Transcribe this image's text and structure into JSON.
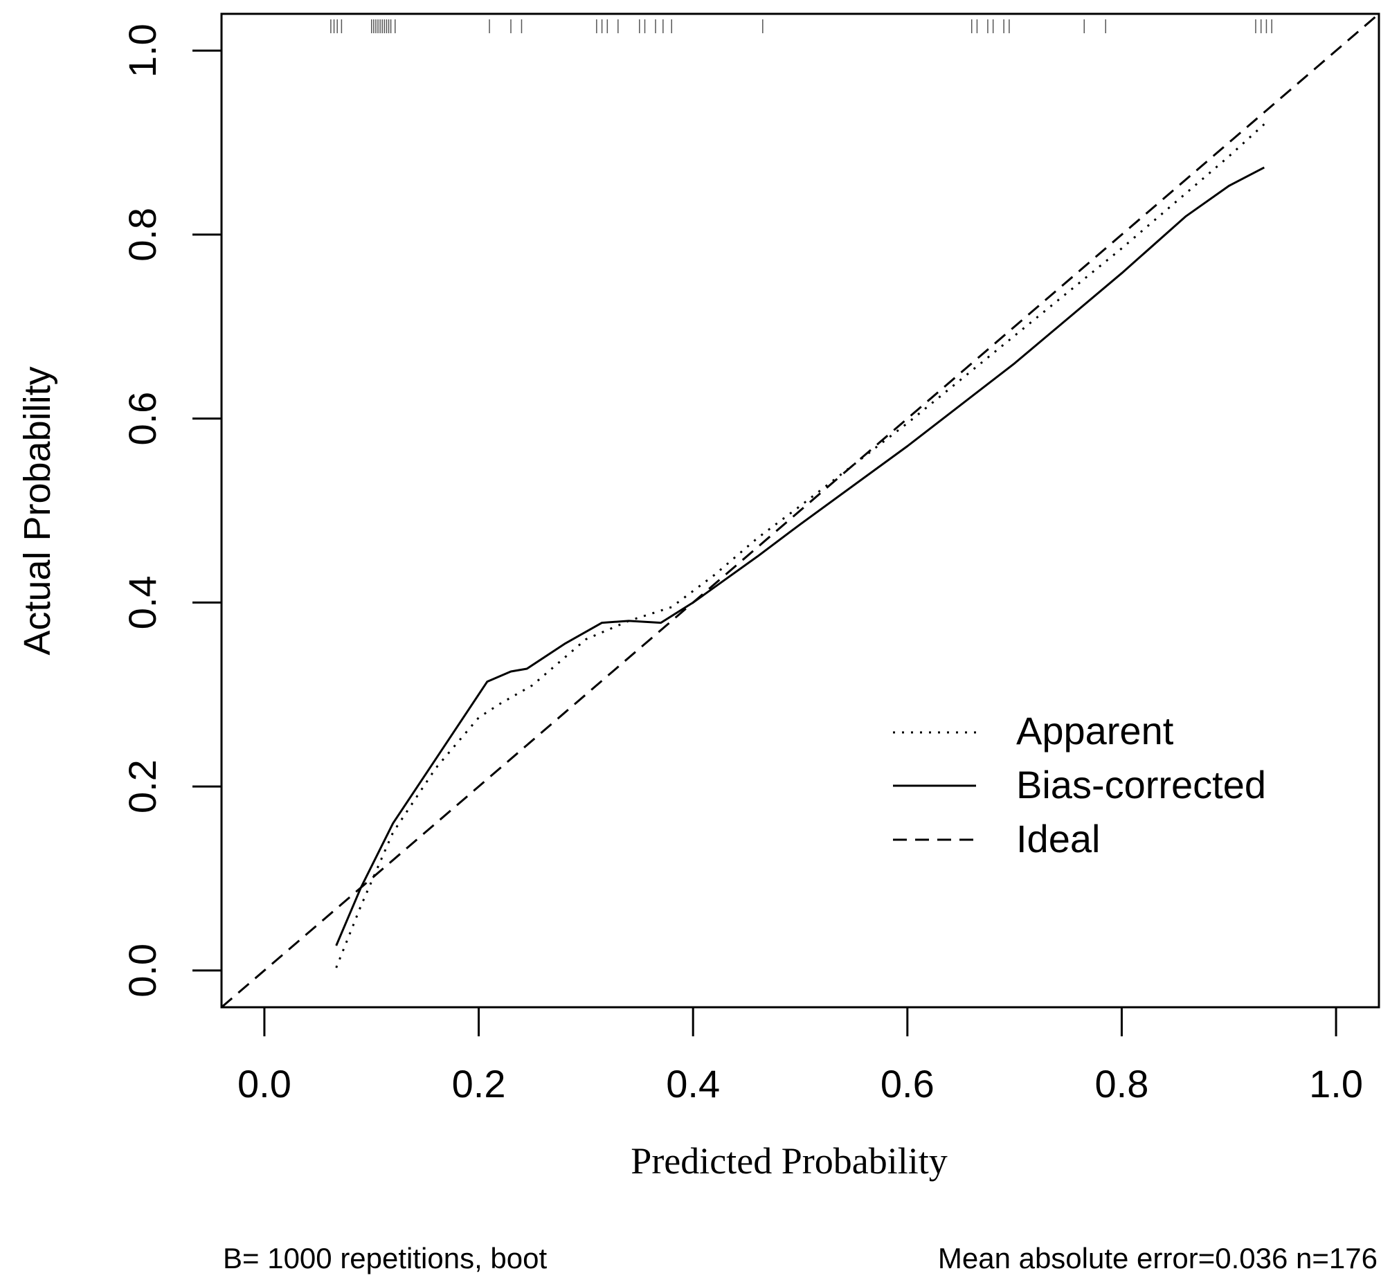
{
  "chart_data": {
    "type": "line",
    "title": "",
    "xlabel": "Predicted Probability",
    "ylabel": "Actual Probability",
    "xlim": [
      -0.04,
      1.04
    ],
    "ylim": [
      -0.04,
      1.04
    ],
    "x_ticks": [
      0.0,
      0.2,
      0.4,
      0.6,
      0.8,
      1.0
    ],
    "y_ticks": [
      0.0,
      0.2,
      0.4,
      0.6,
      0.8,
      1.0
    ],
    "x_tick_labels": [
      "0.0",
      "0.2",
      "0.4",
      "0.6",
      "0.8",
      "1.0"
    ],
    "y_tick_labels": [
      "0.0",
      "0.2",
      "0.4",
      "0.6",
      "0.8",
      "1.0"
    ],
    "grid": false,
    "legend_position": "right",
    "series": [
      {
        "name": "Apparent",
        "style": "dotted",
        "x": [
          0.067,
          0.09,
          0.12,
          0.16,
          0.2,
          0.22,
          0.25,
          0.3,
          0.34,
          0.38,
          0.42,
          0.46,
          0.5,
          0.6,
          0.7,
          0.8,
          0.9,
          0.933
        ],
        "y": [
          0.003,
          0.07,
          0.15,
          0.22,
          0.275,
          0.29,
          0.31,
          0.36,
          0.38,
          0.395,
          0.43,
          0.47,
          0.505,
          0.595,
          0.69,
          0.785,
          0.885,
          0.92
        ]
      },
      {
        "name": "Bias-corrected",
        "style": "solid",
        "x": [
          0.067,
          0.09,
          0.12,
          0.16,
          0.208,
          0.23,
          0.245,
          0.28,
          0.315,
          0.34,
          0.37,
          0.4,
          0.43,
          0.46,
          0.5,
          0.6,
          0.7,
          0.8,
          0.86,
          0.9,
          0.933
        ],
        "y": [
          0.027,
          0.09,
          0.16,
          0.23,
          0.314,
          0.325,
          0.328,
          0.355,
          0.378,
          0.38,
          0.378,
          0.4,
          0.425,
          0.45,
          0.485,
          0.57,
          0.66,
          0.758,
          0.82,
          0.853,
          0.873
        ]
      },
      {
        "name": "Ideal",
        "style": "dashed",
        "x": [
          -0.04,
          1.04
        ],
        "y": [
          -0.04,
          1.04
        ]
      }
    ],
    "rug": [
      0.062,
      0.065,
      0.068,
      0.072,
      0.1,
      0.102,
      0.104,
      0.106,
      0.108,
      0.11,
      0.112,
      0.114,
      0.116,
      0.118,
      0.122,
      0.21,
      0.23,
      0.24,
      0.31,
      0.315,
      0.32,
      0.33,
      0.35,
      0.355,
      0.365,
      0.372,
      0.38,
      0.465,
      0.66,
      0.665,
      0.675,
      0.68,
      0.69,
      0.695,
      0.765,
      0.785,
      0.925,
      0.93,
      0.935,
      0.94
    ],
    "footer_left": "B= 1000 repetitions, boot",
    "footer_right": "Mean absolute error=0.036 n=176"
  }
}
